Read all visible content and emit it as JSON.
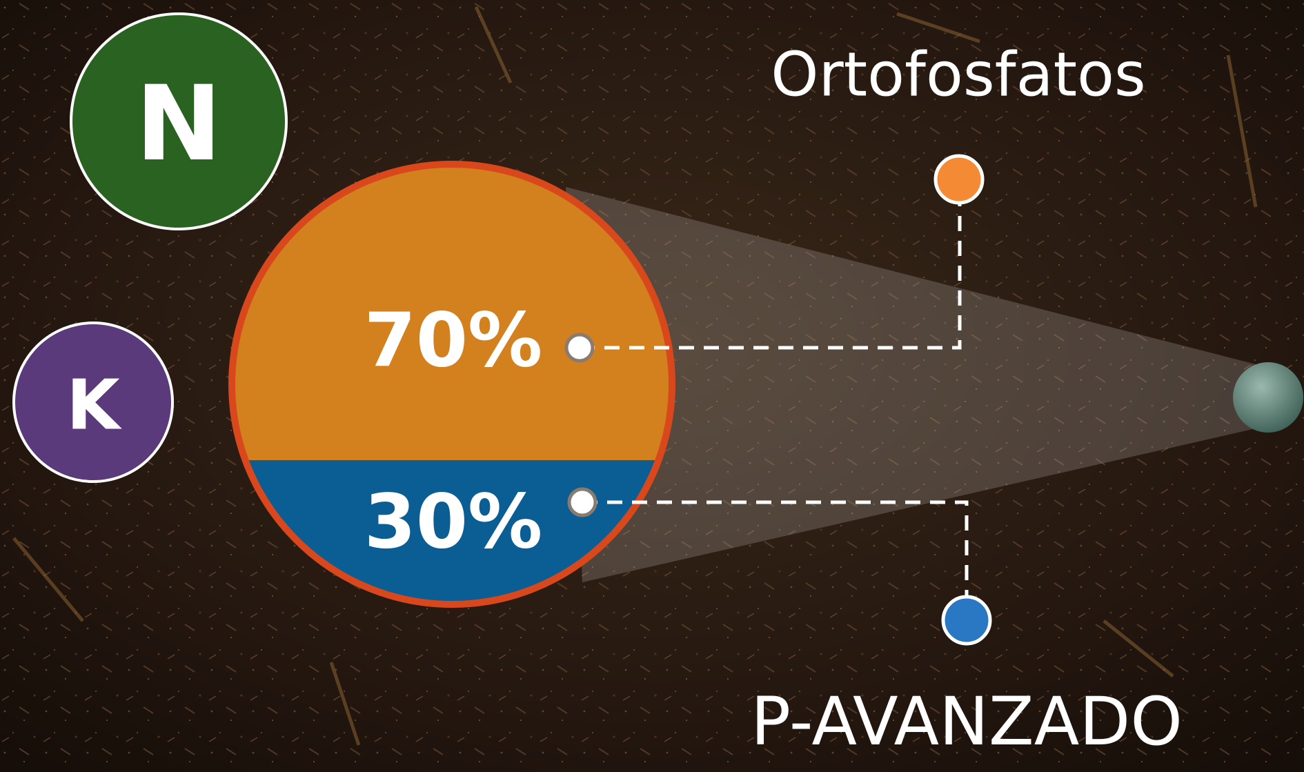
{
  "badges": [
    "N",
    "K"
  ],
  "circle": {
    "top_label": "70%",
    "bottom_label": "30%"
  },
  "labels": {
    "top": "Ortofosfatos",
    "bottom": "P-AVANZADO"
  }
}
